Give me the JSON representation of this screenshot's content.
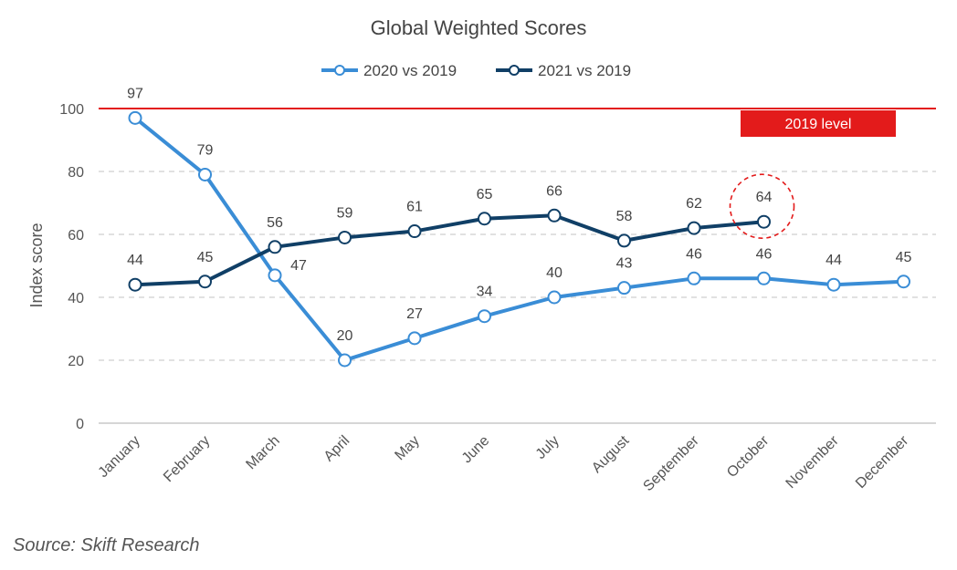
{
  "chart_data": {
    "type": "line",
    "title": "Global Weighted Scores",
    "ylabel": "Index score",
    "xlabel": "",
    "ylim": [
      0,
      100
    ],
    "yticks": [
      0,
      20,
      40,
      60,
      80,
      100
    ],
    "grid": "horizontal dashed",
    "legend_position": "top-center",
    "categories": [
      "January",
      "February",
      "March",
      "April",
      "May",
      "June",
      "July",
      "August",
      "September",
      "October",
      "November",
      "December"
    ],
    "series": [
      {
        "name": "2020 vs 2019",
        "color": "#3a8dd6",
        "values": [
          97,
          79,
          47,
          20,
          27,
          34,
          40,
          43,
          46,
          46,
          44,
          45
        ]
      },
      {
        "name": "2021 vs 2019",
        "color": "#103f66",
        "values": [
          44,
          45,
          56,
          59,
          61,
          65,
          66,
          58,
          62,
          64,
          null,
          null
        ]
      }
    ],
    "reference_line": {
      "value": 100,
      "label": "2019 level",
      "color": "#e31b1b"
    },
    "highlight": {
      "series": "2021 vs 2019",
      "category": "October",
      "color": "#e31b1b"
    }
  },
  "source": "Source: Skift Research"
}
